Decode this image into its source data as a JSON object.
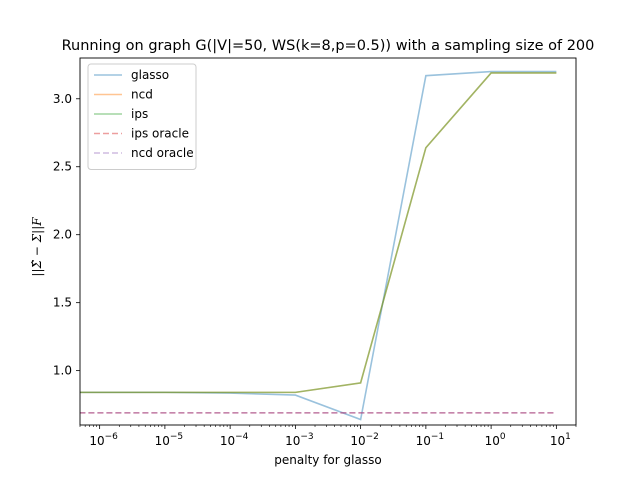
{
  "chart_data": {
    "type": "line",
    "title": "Running on graph G(|V|=50, WS(k=8,p=0.5)) with a sampling size of 200",
    "xlabel": "penalty for glasso",
    "ylabel": "||Σ̂ − Σ||F",
    "xscale": "log",
    "xlim": [
      5e-07,
      20
    ],
    "ylim": [
      0.6,
      3.3
    ],
    "grid": false,
    "legend_position": "upper left",
    "x_ticks": [
      {
        "value": 1e-06,
        "mantissa": "10",
        "exp": "−6"
      },
      {
        "value": 1e-05,
        "mantissa": "10",
        "exp": "−5"
      },
      {
        "value": 0.0001,
        "mantissa": "10",
        "exp": "−4"
      },
      {
        "value": 0.001,
        "mantissa": "10",
        "exp": "−3"
      },
      {
        "value": 0.01,
        "mantissa": "10",
        "exp": "−2"
      },
      {
        "value": 0.1,
        "mantissa": "10",
        "exp": "−1"
      },
      {
        "value": 1,
        "mantissa": "10",
        "exp": "0"
      },
      {
        "value": 10,
        "mantissa": "10",
        "exp": "1"
      }
    ],
    "y_ticks": [
      {
        "value": 1.0,
        "label": "1.0"
      },
      {
        "value": 1.5,
        "label": "1.5"
      },
      {
        "value": 2.0,
        "label": "2.0"
      },
      {
        "value": 2.5,
        "label": "2.5"
      },
      {
        "value": 3.0,
        "label": "3.0"
      }
    ],
    "x": [
      1e-07,
      1e-06,
      1e-05,
      0.0001,
      0.001,
      0.01,
      0.1,
      1,
      10
    ],
    "series": [
      {
        "name": "glasso",
        "color": "#1f77b4",
        "dash": "solid",
        "opacity": 0.45,
        "values": [
          0.84,
          0.84,
          0.84,
          0.835,
          0.82,
          0.64,
          3.17,
          3.2,
          3.2
        ]
      },
      {
        "name": "ncd",
        "color": "#ff7f0e",
        "dash": "solid",
        "opacity": 0.45,
        "values": [
          0.84,
          0.84,
          0.84,
          0.84,
          0.84,
          0.91,
          2.64,
          3.19,
          3.19
        ]
      },
      {
        "name": "ips",
        "color": "#2ca02c",
        "dash": "solid",
        "opacity": 0.45,
        "values": [
          0.84,
          0.84,
          0.84,
          0.84,
          0.84,
          0.91,
          2.64,
          3.19,
          3.19
        ]
      },
      {
        "name": "ips oracle",
        "color": "#d62728",
        "dash": "dashed",
        "opacity": 0.45,
        "values": [
          0.69,
          0.69,
          0.69,
          0.69,
          0.69,
          0.69,
          0.69,
          0.69,
          0.69
        ]
      },
      {
        "name": "ncd oracle",
        "color": "#9467bd",
        "dash": "dashed",
        "opacity": 0.45,
        "values": [
          0.69,
          0.69,
          0.69,
          0.69,
          0.69,
          0.69,
          0.69,
          0.69,
          0.69
        ]
      }
    ]
  }
}
